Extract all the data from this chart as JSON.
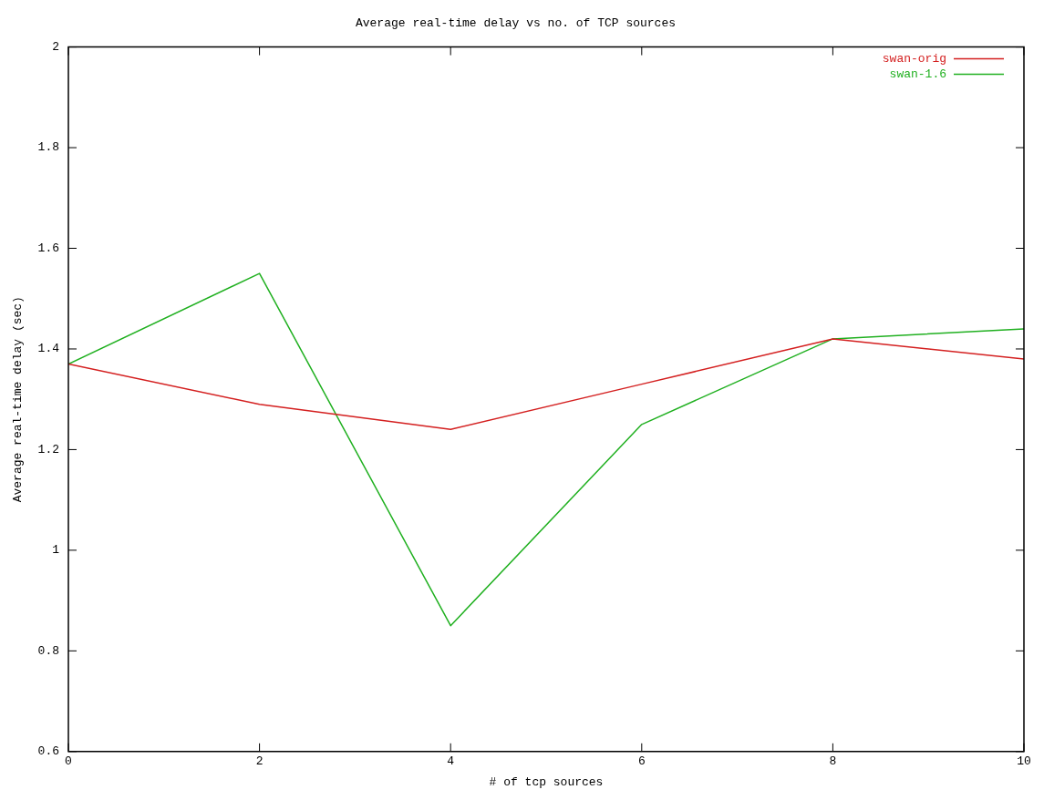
{
  "chart_data": {
    "type": "line",
    "title": "Average real-time delay vs no. of TCP sources",
    "xlabel": "# of tcp sources",
    "ylabel": "Average real-time delay (sec)",
    "x": [
      0,
      2,
      4,
      6,
      8,
      10
    ],
    "series": [
      {
        "name": "swan-orig",
        "color": "#d42020",
        "values": [
          1.37,
          1.29,
          1.24,
          1.33,
          1.42,
          1.38
        ]
      },
      {
        "name": "swan-1.6",
        "color": "#20b020",
        "values": [
          1.37,
          1.55,
          0.85,
          1.25,
          1.42,
          1.44
        ]
      }
    ],
    "xlim": [
      0,
      10
    ],
    "xticks": [
      0,
      2,
      4,
      6,
      8,
      10
    ],
    "ylim": [
      0.6,
      2
    ],
    "yticks": [
      0.6,
      0.8,
      1,
      1.2,
      1.4,
      1.6,
      1.8,
      2
    ],
    "grid": false,
    "legend": "top right",
    "marker": "none",
    "line_style": "solid"
  }
}
